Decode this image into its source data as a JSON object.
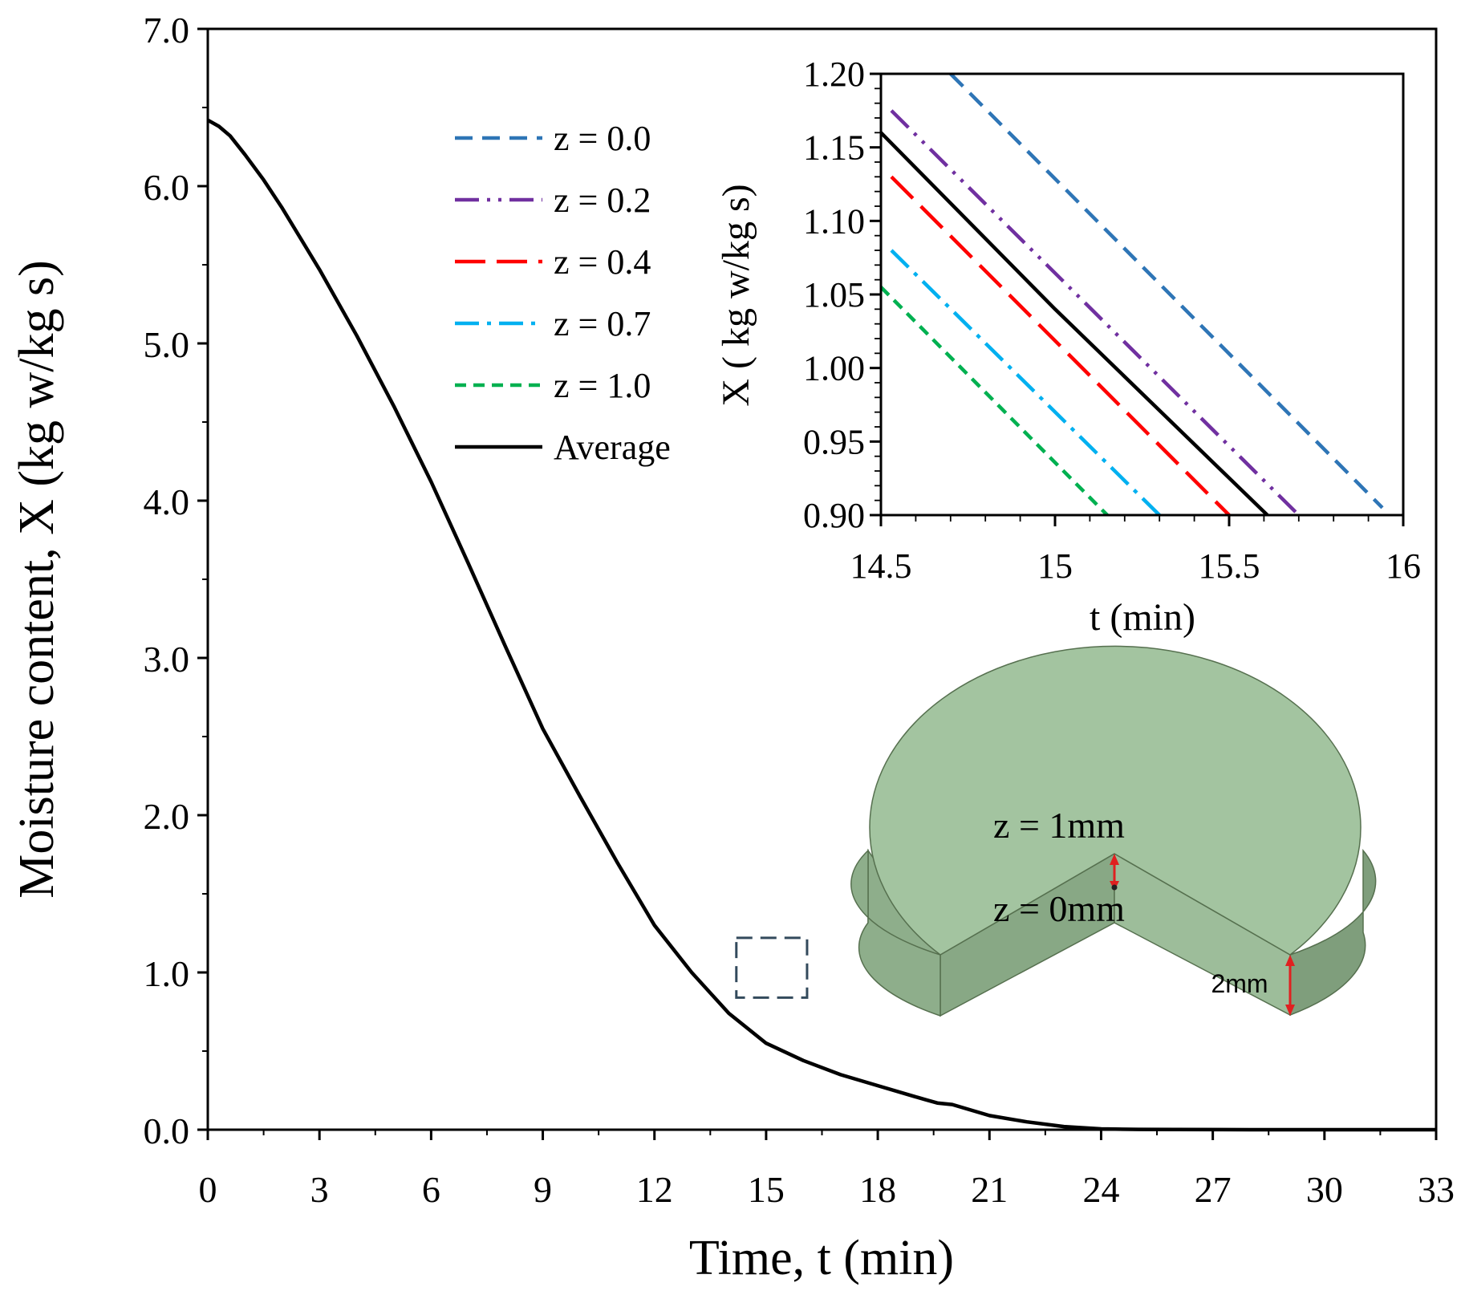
{
  "colors": {
    "z00": "#2E75B6",
    "z02": "#7030A0",
    "z04": "#FF0000",
    "z07": "#00B0F0",
    "z10": "#00B050",
    "average": "#000000",
    "sample_top": "#a3c4a0",
    "sample_side": "#8eae8b",
    "sample_inner": "#7f9e7c",
    "sample_edge": "#56704f",
    "marker": "#e02020",
    "zoom_box": "#334a5c"
  },
  "chart_data": [
    {
      "id": "main",
      "type": "line",
      "title": "",
      "xlabel": "Time, t (min)",
      "ylabel": "Moisture content,  X (kg w/kg s)",
      "xlim": [
        0,
        33
      ],
      "ylim": [
        0,
        7
      ],
      "xticks": [
        0,
        3,
        6,
        9,
        12,
        15,
        18,
        21,
        24,
        27,
        30,
        33
      ],
      "xtick_labels": [
        "0",
        "3",
        "6",
        "9",
        "12",
        "15",
        "18",
        "21",
        "24",
        "27",
        "30",
        "33"
      ],
      "yticks": [
        0,
        1,
        2,
        3,
        4,
        5,
        6,
        7
      ],
      "ytick_labels": [
        "0.0",
        "1.0",
        "2.0",
        "3.0",
        "4.0",
        "5.0",
        "6.0",
        "7.0"
      ],
      "grid": false,
      "series": [
        {
          "name": "Average",
          "x": [
            0,
            0.3,
            0.6,
            1,
            1.5,
            2,
            3,
            4,
            5,
            6,
            7,
            8,
            9,
            10,
            11,
            11.5,
            12,
            13,
            14,
            15,
            16,
            17,
            18,
            19,
            19.3,
            19.6,
            20,
            21,
            22,
            23,
            24,
            25,
            26,
            28,
            30,
            33
          ],
          "y": [
            6.42,
            6.38,
            6.32,
            6.2,
            6.04,
            5.86,
            5.47,
            5.05,
            4.6,
            4.12,
            3.6,
            3.07,
            2.55,
            2.12,
            1.7,
            1.5,
            1.3,
            1.0,
            0.74,
            0.55,
            0.44,
            0.35,
            0.28,
            0.21,
            0.19,
            0.17,
            0.16,
            0.09,
            0.05,
            0.02,
            0.005,
            0.002,
            0.001,
            0,
            0,
            0
          ]
        }
      ],
      "annotations": [
        {
          "type": "zoom-box",
          "x_range": [
            14.2,
            16.1
          ],
          "y_range": [
            0.84,
            1.22
          ]
        }
      ]
    },
    {
      "id": "inset",
      "type": "line",
      "title": "",
      "xlabel": "t (min)",
      "ylabel": "X ( kg w/kg s)",
      "xlim": [
        14.5,
        16
      ],
      "ylim": [
        0.9,
        1.2
      ],
      "xticks": [
        14.5,
        15,
        15.5,
        16
      ],
      "xtick_labels": [
        "14.5",
        "15",
        "15.5",
        "16"
      ],
      "yticks": [
        0.9,
        0.95,
        1.0,
        1.05,
        1.1,
        1.15,
        1.2
      ],
      "ytick_labels": [
        "0.90",
        "0.95",
        "1.00",
        "1.05",
        "1.10",
        "1.15",
        "1.20"
      ],
      "grid": false,
      "series": [
        {
          "name": "z = 0.0",
          "dash": "dashed",
          "color_key": "z00",
          "x": [
            14.7,
            15.94
          ],
          "y": [
            1.2,
            0.905
          ]
        },
        {
          "name": "z = 0.2",
          "dash": "dash-dot-dot",
          "color_key": "z02",
          "x": [
            14.53,
            15.7
          ],
          "y": [
            1.175,
            0.9
          ]
        },
        {
          "name": "z = 0.4",
          "dash": "long-dash",
          "color_key": "z04",
          "x": [
            14.53,
            15.5
          ],
          "y": [
            1.13,
            0.9
          ]
        },
        {
          "name": "z = 0.7",
          "dash": "dash-dot",
          "color_key": "z07",
          "x": [
            14.53,
            15.3
          ],
          "y": [
            1.08,
            0.9
          ]
        },
        {
          "name": "z = 1.0",
          "dash": "short-dash",
          "color_key": "z10",
          "x": [
            14.5,
            15.15
          ],
          "y": [
            1.055,
            0.9
          ]
        },
        {
          "name": "Average",
          "dash": "solid",
          "color_key": "average",
          "x": [
            14.5,
            15.0,
            15.61
          ],
          "y": [
            1.16,
            1.04,
            0.9
          ]
        }
      ],
      "legend": [
        "z = 0.0",
        "z = 0.2",
        "z = 0.4",
        "z = 0.7",
        "z = 1.0",
        "Average"
      ],
      "legend_position": "left of inset"
    }
  ],
  "sample_diagram": {
    "label_top": "z = 1mm",
    "label_bottom": "z = 0mm",
    "label_height": "2mm"
  }
}
